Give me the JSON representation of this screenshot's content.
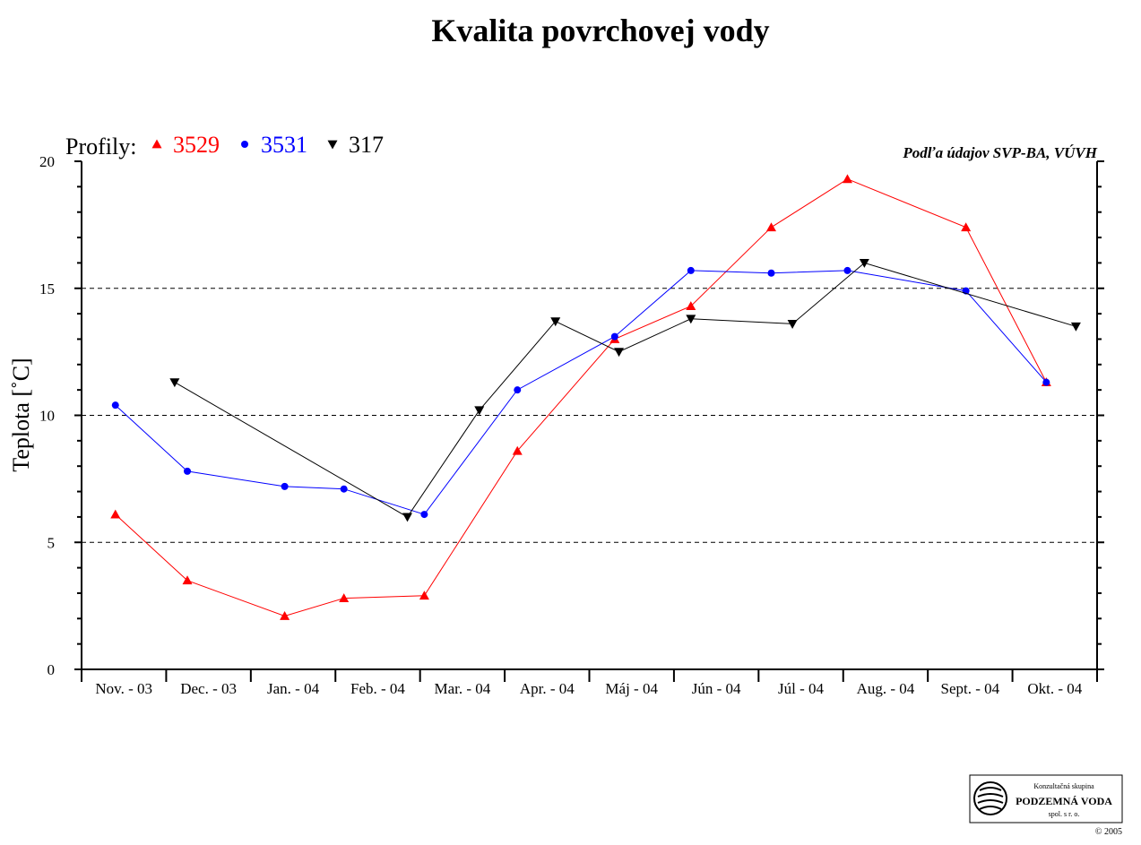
{
  "chart_data": {
    "type": "line",
    "title": "Kvalita povrchovej vody",
    "ylabel": "Teplota [˚C]",
    "xlabel": "",
    "ylim": [
      0,
      20
    ],
    "yticks": [
      0,
      5,
      10,
      15,
      20
    ],
    "y_minor_step": 1,
    "grid": "dashed horizontal at 5, 10, 15",
    "categories": [
      "Nov. - 03",
      "Dec. - 03",
      "Jan. - 04",
      "Feb. - 04",
      "Mar. - 04",
      "Apr. - 04",
      "Máj - 04",
      "Jún - 04",
      "Júl - 04",
      "Aug. - 04",
      "Sept. - 04",
      "Okt. - 04"
    ],
    "legend_prefix": "Profily:",
    "legend_position": "top-left",
    "source_note": "Podľa údajov SVP-BA, VÚVH",
    "series": [
      {
        "name": "3529",
        "color": "#ff0000",
        "marker": "triangle-up",
        "points": [
          {
            "x": 0.4,
            "y": 6.1
          },
          {
            "x": 1.25,
            "y": 3.5
          },
          {
            "x": 2.4,
            "y": 2.1
          },
          {
            "x": 3.1,
            "y": 2.8
          },
          {
            "x": 4.05,
            "y": 2.9
          },
          {
            "x": 5.15,
            "y": 8.6
          },
          {
            "x": 6.3,
            "y": 13.0
          },
          {
            "x": 7.2,
            "y": 14.3
          },
          {
            "x": 8.15,
            "y": 17.4
          },
          {
            "x": 9.05,
            "y": 19.3
          },
          {
            "x": 10.45,
            "y": 17.4
          },
          {
            "x": 11.4,
            "y": 11.3
          }
        ]
      },
      {
        "name": "3531",
        "color": "#0000ff",
        "marker": "circle",
        "points": [
          {
            "x": 0.4,
            "y": 10.4
          },
          {
            "x": 1.25,
            "y": 7.8
          },
          {
            "x": 2.4,
            "y": 7.2
          },
          {
            "x": 3.1,
            "y": 7.1
          },
          {
            "x": 4.05,
            "y": 6.1
          },
          {
            "x": 5.15,
            "y": 11.0
          },
          {
            "x": 6.3,
            "y": 13.1
          },
          {
            "x": 7.2,
            "y": 15.7
          },
          {
            "x": 8.15,
            "y": 15.6
          },
          {
            "x": 9.05,
            "y": 15.7
          },
          {
            "x": 10.45,
            "y": 14.9
          },
          {
            "x": 11.4,
            "y": 11.3
          }
        ]
      },
      {
        "name": "317",
        "color": "#000000",
        "marker": "triangle-down",
        "points": [
          {
            "x": 1.1,
            "y": 11.3
          },
          {
            "x": 3.85,
            "y": 6.0
          },
          {
            "x": 4.7,
            "y": 10.2
          },
          {
            "x": 5.6,
            "y": 13.7
          },
          {
            "x": 6.35,
            "y": 12.5
          },
          {
            "x": 7.2,
            "y": 13.8
          },
          {
            "x": 8.4,
            "y": 13.6
          },
          {
            "x": 9.25,
            "y": 16.0
          },
          {
            "x": 11.75,
            "y": 13.5
          }
        ]
      }
    ]
  },
  "logo": {
    "line1": "Konzultačná skupina",
    "line2": "PODZEMNÁ VODA",
    "line3": "spol. s r. o.",
    "copyright": "© 2005"
  }
}
